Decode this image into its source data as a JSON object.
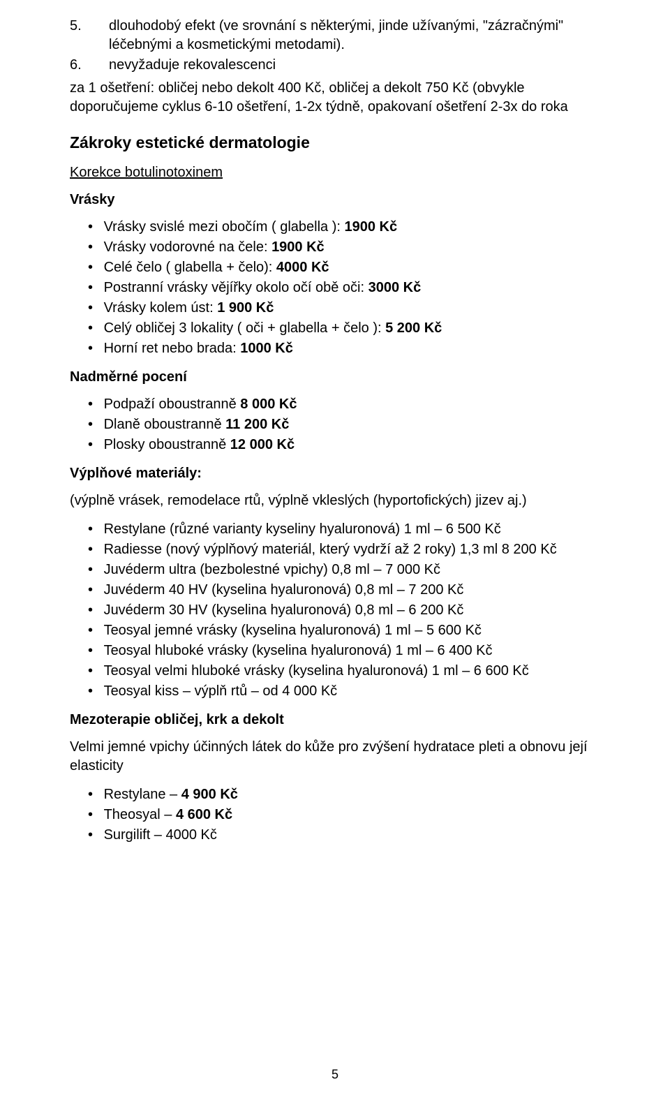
{
  "numbered_list": {
    "items": [
      {
        "num": "5.",
        "text": "dlouhodobý efekt (ve srovnání s některými, jinde užívanými, \"zázračnými\" léčebnými a kosmetickými metodami)."
      },
      {
        "num": "6.",
        "text": "nevyžaduje rekovalescenci"
      }
    ]
  },
  "below_para": "za 1 ošetření: obličej nebo dekolt 400 Kč, obličej a dekolt  750 Kč (obvykle doporučujeme cyklus 6-10 ošetření, 1-2x týdně, opakovaní ošetření 2-3x do roka",
  "zakroky_heading": "Zákroky estetické dermatologie",
  "korekce_heading": "Korekce botulinotoxinem",
  "vrasky": {
    "heading": "Vrásky",
    "items": [
      {
        "prefix": "Vrásky svislé mezi obočím ( glabella ): ",
        "bold": "1900 Kč"
      },
      {
        "prefix": "Vrásky vodorovné na čele: ",
        "bold": "1900 Kč"
      },
      {
        "prefix": "Celé čelo ( glabella + čelo): ",
        "bold": "4000 Kč"
      },
      {
        "prefix": "Postranní vrásky vějířky okolo očí obě oči: ",
        "bold": "3000 Kč"
      },
      {
        "prefix": "Vrásky kolem úst: ",
        "bold": "1 900 Kč"
      },
      {
        "prefix": "Celý obličej 3 lokality ( oči + glabella + čelo ): ",
        "bold": "5 200 Kč"
      },
      {
        "prefix": "Horní ret nebo brada: ",
        "bold": "1000 Kč"
      }
    ]
  },
  "poceni": {
    "heading": "Nadměrné pocení",
    "items": [
      {
        "prefix": "Podpaží oboustranně ",
        "bold": "8 000 Kč"
      },
      {
        "prefix": "Dlaně oboustranně ",
        "bold": "11 200 Kč"
      },
      {
        "prefix": "Plosky oboustranně ",
        "bold": "12 000 Kč"
      }
    ]
  },
  "vyplnove": {
    "heading": "Výplňové materiály:",
    "subnote": "(výplně vrásek, remodelace rtů, výplně vkleslých (hyportofických) jizev aj.)",
    "items": [
      "Restylane (různé varianty kyseliny hyaluronová) 1 ml – 6 500 Kč",
      "Radiesse (nový výplňový materiál, který vydrží až 2 roky) 1,3 ml 8 200 Kč",
      "Juvéderm ultra (bezbolestné vpichy) 0,8 ml – 7 000 Kč",
      "Juvéderm 40 HV (kyselina hyaluronová) 0,8 ml – 7 200 Kč",
      "Juvéderm 30 HV (kyselina hyaluronová) 0,8 ml – 6 200 Kč",
      "Teosyal  jemné vrásky (kyselina hyaluronová) 1 ml – 5 600 Kč",
      "Teosyal  hluboké vrásky (kyselina hyaluronová) 1 ml – 6 400 Kč",
      "Teosyal  velmi hluboké vrásky (kyselina hyaluronová) 1 ml – 6 600 Kč",
      "Teosyal kiss – výplň rtů – od 4 000 Kč"
    ]
  },
  "mezo": {
    "heading": "Mezoterapie obličej, krk a dekolt",
    "para": "Velmi jemné vpichy účinných látek do kůže pro zvýšení hydratace pleti a obnovu její elasticity",
    "items": [
      {
        "prefix": "Restylane – ",
        "bold": "4 900 Kč"
      },
      {
        "prefix": "Theosyal –  ",
        "bold": "4 600 Kč"
      },
      {
        "prefix": "Surgilift – 4000 Kč",
        "bold": ""
      }
    ]
  },
  "page_number": "5"
}
